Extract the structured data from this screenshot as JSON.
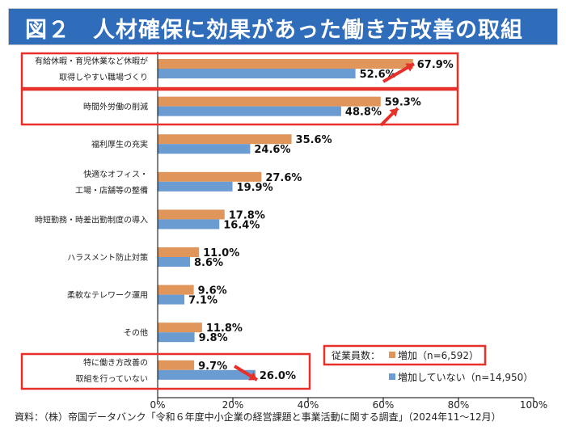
{
  "title": "図２　人材確保に効果があった働き方改善の取組",
  "source": "資料：（株）帝国データバンク「令和６年度中小企業の経営課題と事業活動に関する調査」（2024年11～12月）",
  "chart_data": {
    "type": "bar",
    "orientation": "horizontal",
    "categories": [
      [
        "有給休暇・育児休業など休暇が",
        "取得しやすい職場づくり"
      ],
      [
        "時間外労働の削減"
      ],
      [
        "福利厚生の充実"
      ],
      [
        "快適なオフィス・",
        "工場・店舗等の整備"
      ],
      [
        "時短勤務・時差出勤制度の導入"
      ],
      [
        "ハラスメント防止対策"
      ],
      [
        "柔軟なテレワーク運用"
      ],
      [
        "その他"
      ],
      [
        "特に働き方改善の",
        "取組を行っていない"
      ]
    ],
    "series": [
      {
        "name": "増加（n=6,592）",
        "color": "#e0955a",
        "values": [
          67.9,
          59.3,
          35.6,
          27.6,
          17.8,
          11.0,
          9.6,
          11.8,
          9.7
        ],
        "labels": [
          "67.9%",
          "59.3%",
          "35.6%",
          "27.6%",
          "17.8%",
          "11.0%",
          "9.6%",
          "11.8%",
          "9.7%"
        ]
      },
      {
        "name": "増加していない（n=14,950）",
        "color": "#6a9bd1",
        "values": [
          52.6,
          48.8,
          24.6,
          19.9,
          16.4,
          8.6,
          7.1,
          9.8,
          26.0
        ],
        "labels": [
          "52.6%",
          "48.8%",
          "24.6%",
          "19.9%",
          "16.4%",
          "8.6%",
          "7.1%",
          "9.8%",
          "26.0%"
        ]
      }
    ],
    "legend_title": "従業員数：",
    "legend_position": "bottom-right",
    "xlim": [
      0,
      100
    ],
    "xticks": [
      "0%",
      "20%",
      "40%",
      "60%",
      "80%",
      "100%"
    ],
    "grid": false,
    "highlighted_categories": [
      0,
      1,
      8
    ],
    "highlight_color": "#e8302a"
  }
}
